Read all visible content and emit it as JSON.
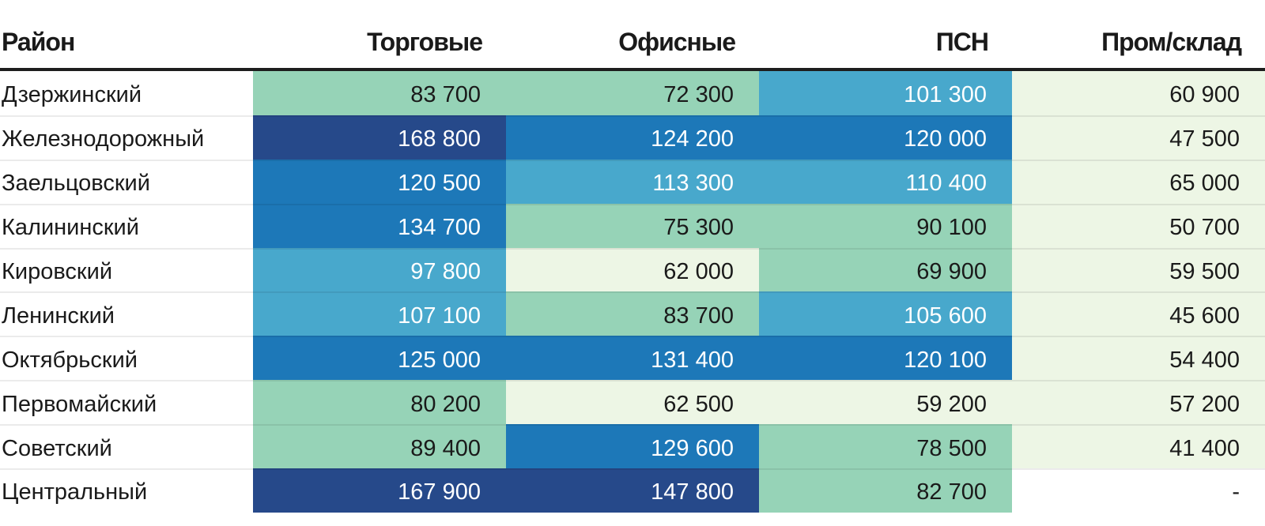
{
  "palette": {
    "tone_light": "#edf6e5",
    "tone_green": "#96d3b7",
    "tone_mblue": "#48a8cc",
    "tone_bblue": "#1d78b8",
    "tone_navy": "#26498a",
    "tone_none": "#ffffff",
    "header_rule": "#1d1d1d",
    "row_separator": "rgba(0,0,0,0.08)",
    "text_dark": "#1a1a1a",
    "text_light": "#ffffff"
  },
  "table": {
    "header": [
      "Район",
      "Торговые",
      "Офисные",
      "ПСН",
      "Пром/склад"
    ],
    "rows": [
      {
        "label": "Дзержинский",
        "cells": [
          {
            "text": "83 700",
            "tone": "green"
          },
          {
            "text": "72 300",
            "tone": "green"
          },
          {
            "text": "101 300",
            "tone": "mblue"
          },
          {
            "text": "60 900",
            "tone": "light"
          }
        ]
      },
      {
        "label": "Железнодорожный",
        "cells": [
          {
            "text": "168 800",
            "tone": "navy"
          },
          {
            "text": "124 200",
            "tone": "bblue"
          },
          {
            "text": "120 000",
            "tone": "bblue"
          },
          {
            "text": "47 500",
            "tone": "light"
          }
        ]
      },
      {
        "label": "Заельцовский",
        "cells": [
          {
            "text": "120 500",
            "tone": "bblue"
          },
          {
            "text": "113 300",
            "tone": "mblue"
          },
          {
            "text": "110 400",
            "tone": "mblue"
          },
          {
            "text": "65 000",
            "tone": "light"
          }
        ]
      },
      {
        "label": "Калининский",
        "cells": [
          {
            "text": "134 700",
            "tone": "bblue"
          },
          {
            "text": "75 300",
            "tone": "green"
          },
          {
            "text": "90 100",
            "tone": "green"
          },
          {
            "text": "50 700",
            "tone": "light"
          }
        ]
      },
      {
        "label": "Кировский",
        "cells": [
          {
            "text": "97 800",
            "tone": "mblue"
          },
          {
            "text": "62 000",
            "tone": "light"
          },
          {
            "text": "69 900",
            "tone": "green"
          },
          {
            "text": "59 500",
            "tone": "light"
          }
        ]
      },
      {
        "label": "Ленинский",
        "cells": [
          {
            "text": "107 100",
            "tone": "mblue"
          },
          {
            "text": "83 700",
            "tone": "green"
          },
          {
            "text": "105 600",
            "tone": "mblue"
          },
          {
            "text": "45 600",
            "tone": "light"
          }
        ]
      },
      {
        "label": "Октябрьский",
        "cells": [
          {
            "text": "125 000",
            "tone": "bblue"
          },
          {
            "text": "131 400",
            "tone": "bblue"
          },
          {
            "text": "120 100",
            "tone": "bblue"
          },
          {
            "text": "54 400",
            "tone": "light"
          }
        ]
      },
      {
        "label": "Первомайский",
        "cells": [
          {
            "text": "80 200",
            "tone": "green"
          },
          {
            "text": "62 500",
            "tone": "light"
          },
          {
            "text": "59 200",
            "tone": "light"
          },
          {
            "text": "57 200",
            "tone": "light"
          }
        ]
      },
      {
        "label": "Советский",
        "cells": [
          {
            "text": "89 400",
            "tone": "green"
          },
          {
            "text": "129 600",
            "tone": "bblue"
          },
          {
            "text": "78 500",
            "tone": "green"
          },
          {
            "text": "41 400",
            "tone": "light"
          }
        ]
      },
      {
        "label": "Центральный",
        "cells": [
          {
            "text": "167 900",
            "tone": "navy"
          },
          {
            "text": "147 800",
            "tone": "navy"
          },
          {
            "text": "82 700",
            "tone": "green"
          },
          {
            "text": "-",
            "tone": "none"
          }
        ]
      }
    ]
  },
  "chart_data": {
    "type": "heatmap",
    "title": "",
    "row_header_label": "Район",
    "columns": [
      "Торговые",
      "Офисные",
      "ПСН",
      "Пром/склад"
    ],
    "rows": [
      "Дзержинский",
      "Железнодорожный",
      "Заельцовский",
      "Калининский",
      "Кировский",
      "Ленинский",
      "Октябрьский",
      "Первомайский",
      "Советский",
      "Центральный"
    ],
    "values": [
      [
        83700,
        72300,
        101300,
        60900
      ],
      [
        168800,
        124200,
        120000,
        47500
      ],
      [
        120500,
        113300,
        110400,
        65000
      ],
      [
        134700,
        75300,
        90100,
        50700
      ],
      [
        97800,
        62000,
        69900,
        59500
      ],
      [
        107100,
        83700,
        105600,
        45600
      ],
      [
        125000,
        131400,
        120100,
        54400
      ],
      [
        80200,
        62500,
        59200,
        57200
      ],
      [
        89400,
        129600,
        78500,
        41400
      ],
      [
        167900,
        147800,
        82700,
        null
      ]
    ],
    "missing_marker": "-",
    "color_scale": {
      "type": "quantize",
      "classes": 5,
      "min": 41400,
      "max": 168800,
      "colors": [
        "#edf6e5",
        "#96d3b7",
        "#48a8cc",
        "#1d78b8",
        "#26498a"
      ]
    },
    "legend": "none",
    "grid": "off"
  }
}
